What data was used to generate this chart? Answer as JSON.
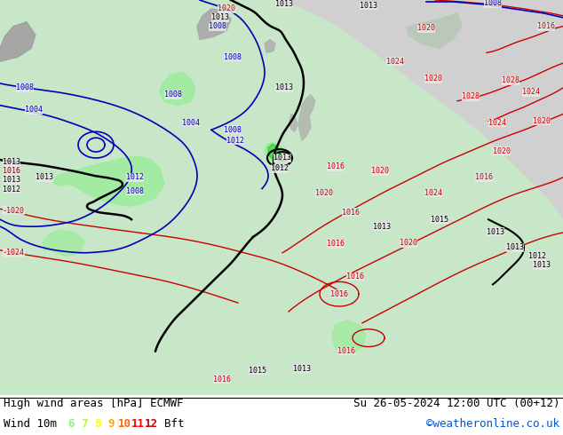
{
  "title_left": "High wind areas [hPa] ECMWF",
  "title_right": "Su 26-05-2024 12:00 UTC (00+12)",
  "subtitle_left": "Wind 10m",
  "subtitle_right": "©weatheronline.co.uk",
  "bft_label": "Bft",
  "bft_values": [
    "6",
    "7",
    "8",
    "9",
    "10",
    "11",
    "12"
  ],
  "bft_colors": [
    "#90EE90",
    "#adff2f",
    "#FFFF00",
    "#FFA500",
    "#FF6600",
    "#FF0000",
    "#CC0000"
  ],
  "background_color": "#ffffff",
  "map_bg": "#e8e8e8",
  "land_green": "#c8e6c8",
  "land_gray": "#a8a8a8",
  "sea_color": "#d8d8d8",
  "wind_green_light": "#90ee90",
  "wind_green_dark": "#00cc00",
  "footer_sep_color": "#000000",
  "isobar_black": "#000000",
  "isobar_red": "#cc0000",
  "isobar_blue": "#0000bb",
  "title_fontsize": 9,
  "legend_fontsize": 9,
  "figsize": [
    6.34,
    4.9
  ],
  "dpi": 100
}
